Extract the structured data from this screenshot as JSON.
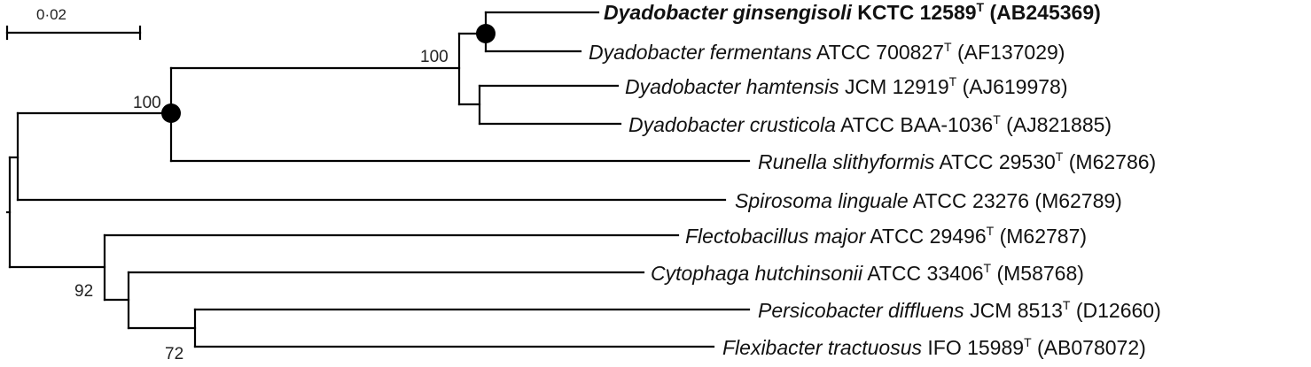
{
  "scale_bar": {
    "label": "0·02"
  },
  "bootstrap_values": {
    "root_clade": "100",
    "dyadobacter_clade": "100",
    "cytophaga_group": "92",
    "persicobacter_flexibacter": "72"
  },
  "taxa": [
    {
      "genus_species": "Dyadobacter ginsengisoli",
      "strain": "KCTC 12589",
      "type_mark": "T",
      "accession": "(AB245369)",
      "bold": true
    },
    {
      "genus_species": "Dyadobacter fermentans",
      "strain": "ATCC 700827",
      "type_mark": "T",
      "accession": "(AF137029)",
      "bold": false
    },
    {
      "genus_species": "Dyadobacter hamtensis",
      "strain": "JCM 12919",
      "type_mark": "T",
      "accession": "(AJ619978)",
      "bold": false
    },
    {
      "genus_species": "Dyadobacter crusticola",
      "strain": "ATCC BAA-1036",
      "type_mark": "T",
      "accession": "(AJ821885)",
      "bold": false
    },
    {
      "genus_species": "Runella slithyformis",
      "strain": "ATCC 29530",
      "type_mark": "T",
      "accession": "(M62786)",
      "bold": false
    },
    {
      "genus_species": "Spirosoma linguale",
      "strain": "ATCC 23276",
      "type_mark": "",
      "accession": "(M62789)",
      "bold": false
    },
    {
      "genus_species": "Flectobacillus major",
      "strain": "ATCC 29496",
      "type_mark": "T",
      "accession": "(M62787)",
      "bold": false
    },
    {
      "genus_species": "Cytophaga hutchinsonii",
      "strain": "ATCC 33406",
      "type_mark": "T",
      "accession": "(M58768)",
      "bold": false
    },
    {
      "genus_species": "Persicobacter diffluens",
      "strain": "JCM 8513",
      "type_mark": "T",
      "accession": "(D12660)",
      "bold": false
    },
    {
      "genus_species": "Flexibacter tractuosus",
      "strain": "IFO 15989",
      "type_mark": "T",
      "accession": "(AB078072)",
      "bold": false
    }
  ]
}
